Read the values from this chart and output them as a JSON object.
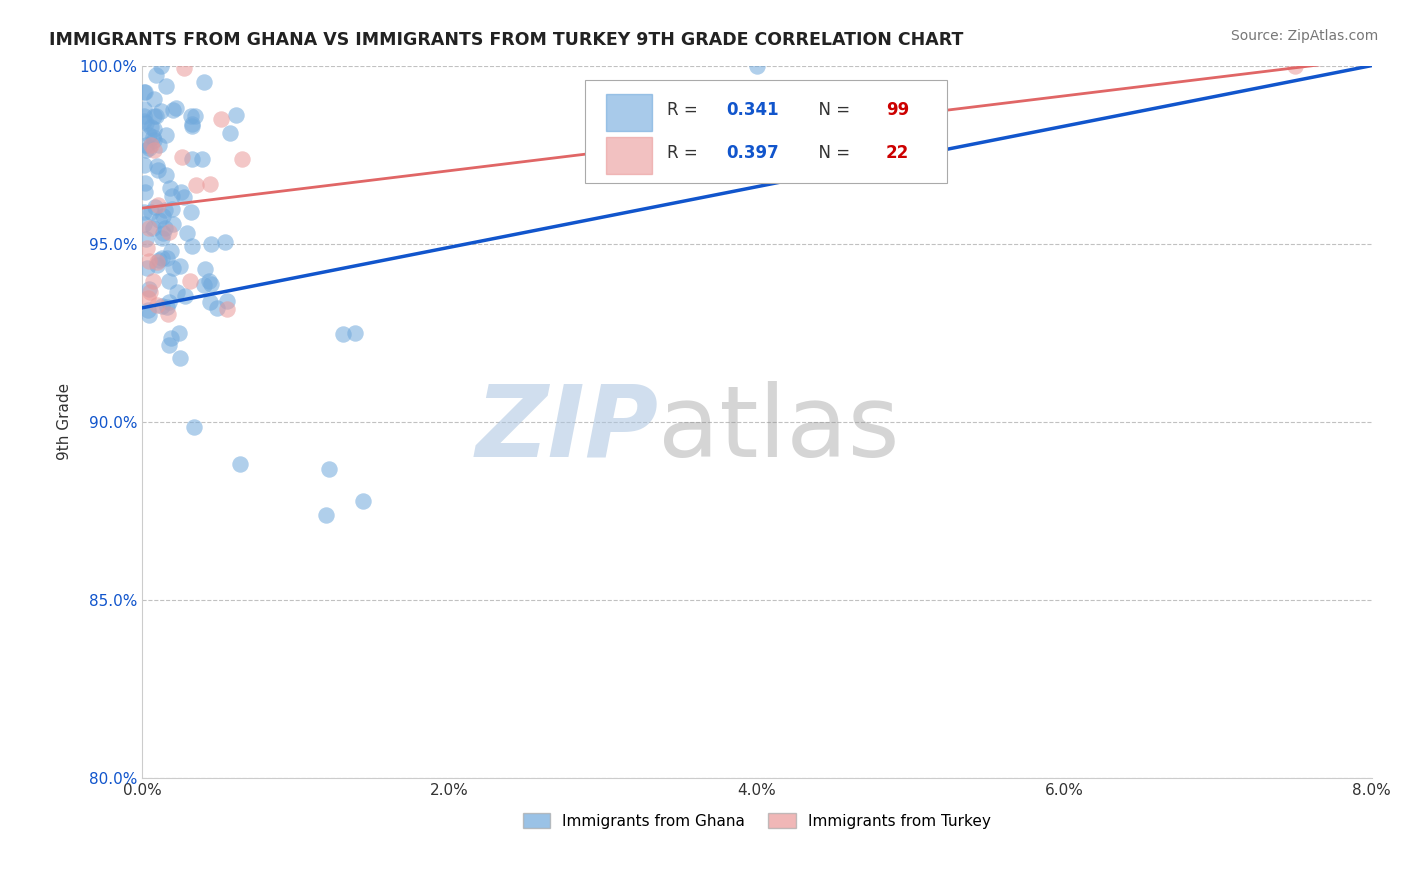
{
  "title": "IMMIGRANTS FROM GHANA VS IMMIGRANTS FROM TURKEY 9TH GRADE CORRELATION CHART",
  "source_text": "Source: ZipAtlas.com",
  "ylabel": "9th Grade",
  "xlim": [
    0.0,
    8.0
  ],
  "ylim": [
    80.0,
    100.0
  ],
  "xtick_labels": [
    "0.0%",
    "2.0%",
    "4.0%",
    "6.0%",
    "8.0%"
  ],
  "xtick_values": [
    0.0,
    2.0,
    4.0,
    6.0,
    8.0
  ],
  "ytick_labels": [
    "80.0%",
    "85.0%",
    "90.0%",
    "95.0%",
    "100.0%"
  ],
  "ytick_values": [
    80.0,
    85.0,
    90.0,
    95.0,
    100.0
  ],
  "ghana_color": "#6fa8dc",
  "turkey_color": "#ea9999",
  "ghana_R": 0.341,
  "ghana_N": 99,
  "turkey_R": 0.397,
  "turkey_N": 22,
  "ghana_line_color": "#1155cc",
  "turkey_line_color": "#e06666",
  "watermark_text": "ZIP",
  "watermark_text2": "atlas",
  "watermark_color1": "#7baed6",
  "watermark_color2": "#555555",
  "legend_label_ghana": "Immigrants from Ghana",
  "legend_label_turkey": "Immigrants from Turkey",
  "r_color": "#1155cc",
  "n_color": "#cc0000"
}
